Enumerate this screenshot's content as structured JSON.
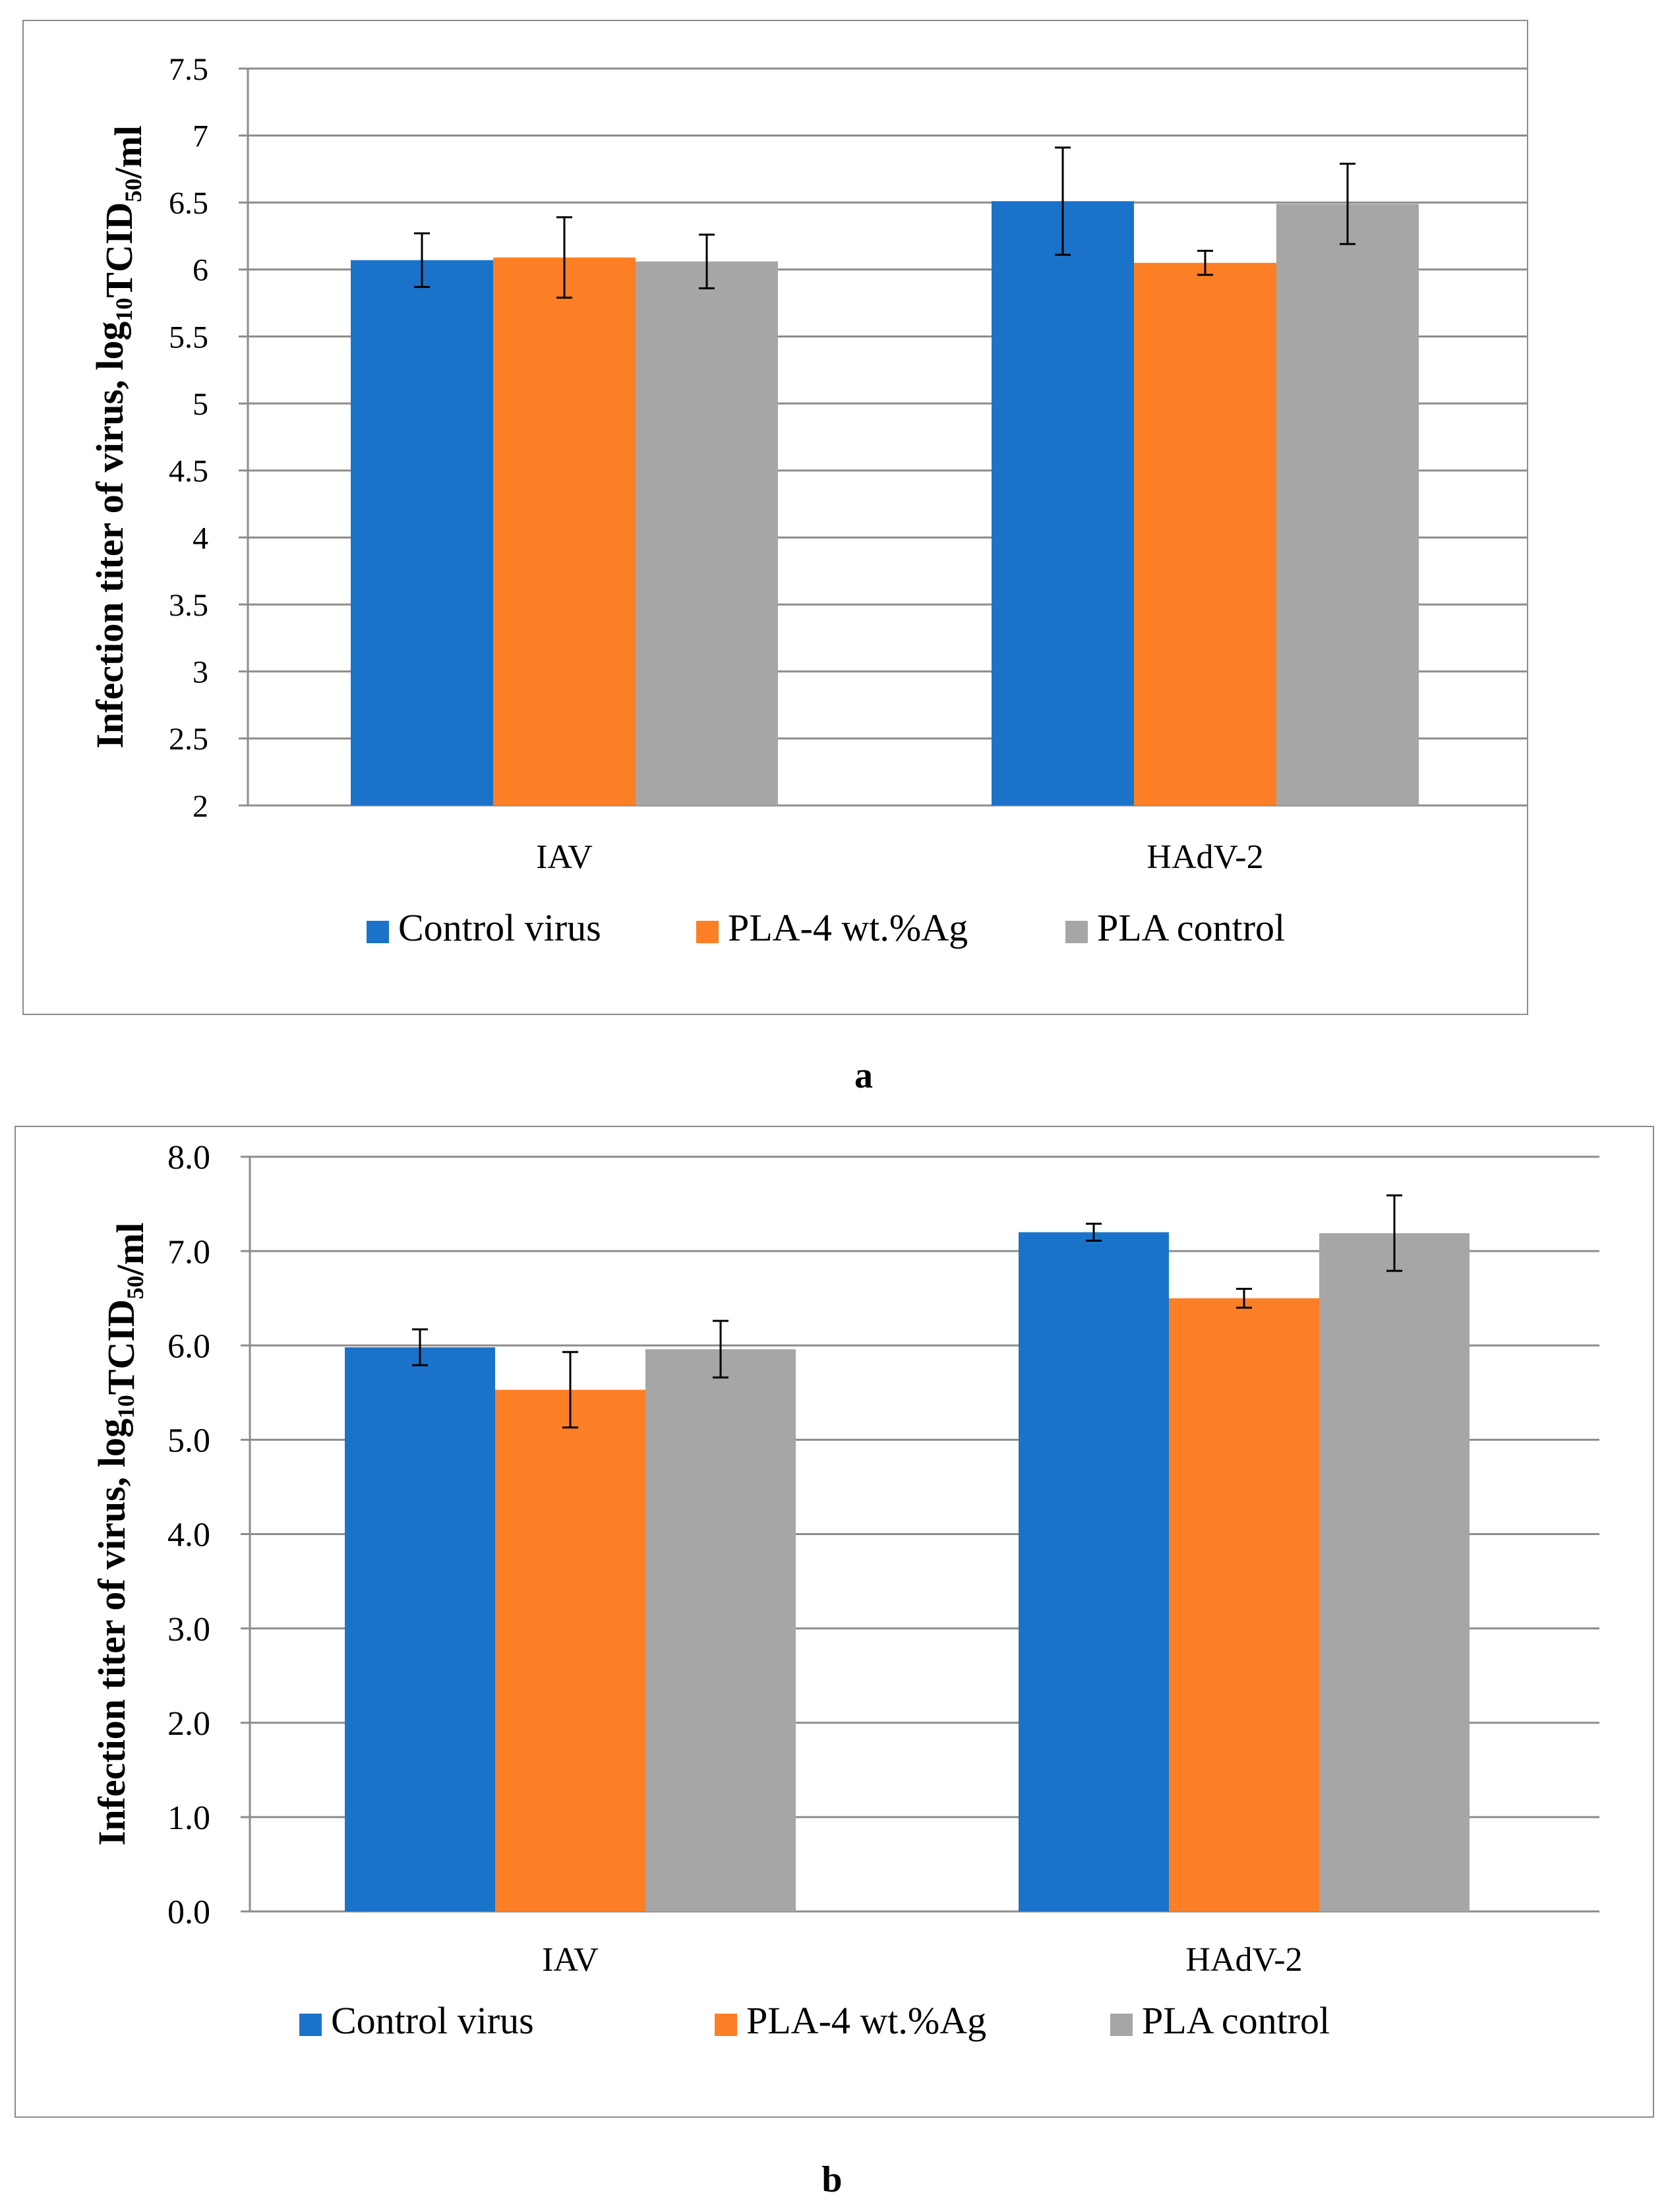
{
  "colors": {
    "control_virus": "#1a73c8",
    "pla_ag": "#fd7f25",
    "pla_control": "#a6a6a6",
    "grid": "#8c8c8c"
  },
  "panels": {
    "a": {
      "label": "a"
    },
    "b": {
      "label": "b"
    }
  },
  "chart_data": [
    {
      "id": "a",
      "type": "bar",
      "ylabel_main": "Infection titer of virus, log",
      "ylabel_sub": "10",
      "ylabel_mid": "TCID",
      "ylabel_sub2": "50",
      "ylabel_end": "/ml",
      "categories": [
        "IAV",
        "HAdV-2"
      ],
      "ylim": [
        2,
        7.5
      ],
      "ystep": 0.5,
      "ytick_labels": [
        "2",
        "2.5",
        "3",
        "3.5",
        "4",
        "4.5",
        "5",
        "5.5",
        "6",
        "6.5",
        "7",
        "7.5"
      ],
      "grid": true,
      "legend_position": "bottom",
      "series": [
        {
          "name": "Control virus",
          "color_key": "control_virus",
          "values": [
            6.07,
            6.51
          ],
          "errors": [
            0.2,
            0.4
          ]
        },
        {
          "name": "PLA-4 wt.%Ag",
          "color_key": "pla_ag",
          "values": [
            6.09,
            6.05
          ],
          "errors": [
            0.3,
            0.09
          ]
        },
        {
          "name": "PLA control",
          "color_key": "pla_control",
          "values": [
            6.06,
            6.49
          ],
          "errors": [
            0.2,
            0.3
          ]
        }
      ]
    },
    {
      "id": "b",
      "type": "bar",
      "ylabel_main": "Infection titer of virus, log",
      "ylabel_sub": "10",
      "ylabel_mid": "TCID",
      "ylabel_sub2": "50",
      "ylabel_end": "/ml",
      "categories": [
        "IAV",
        "HAdV-2"
      ],
      "ylim": [
        0,
        8
      ],
      "ystep": 1,
      "ytick_labels": [
        "0.0",
        "1.0",
        "2.0",
        "3.0",
        "4.0",
        "5.0",
        "6.0",
        "7.0",
        "8.0"
      ],
      "grid": true,
      "legend_position": "bottom",
      "series": [
        {
          "name": "Control virus",
          "color_key": "control_virus",
          "values": [
            5.98,
            7.2
          ],
          "errors": [
            0.19,
            0.09
          ]
        },
        {
          "name": "PLA-4 wt.%Ag",
          "color_key": "pla_ag",
          "values": [
            5.53,
            6.5
          ],
          "errors": [
            0.4,
            0.1
          ]
        },
        {
          "name": "PLA control",
          "color_key": "pla_control",
          "values": [
            5.96,
            7.19
          ],
          "errors": [
            0.3,
            0.4
          ]
        }
      ]
    }
  ]
}
